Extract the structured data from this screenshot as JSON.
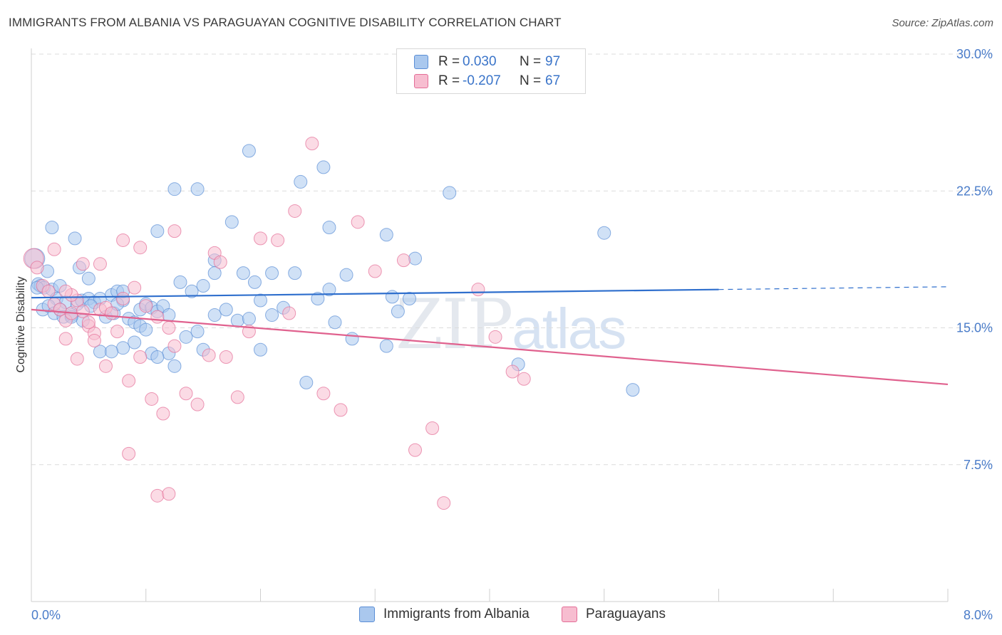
{
  "title": "IMMIGRANTS FROM ALBANIA VS PARAGUAYAN COGNITIVE DISABILITY CORRELATION CHART",
  "source": "Source: ZipAtlas.com",
  "watermark": {
    "zip": "ZIP",
    "atlas": "atlas"
  },
  "legend": {
    "r_label": "R =",
    "n_label": "N =",
    "rows": [
      {
        "r": "0.030",
        "n": "97",
        "color": "#aac8ee"
      },
      {
        "r": "-0.207",
        "n": "67",
        "color": "#f7bdd0"
      }
    ]
  },
  "bottom_legend": [
    {
      "label": "Immigrants from Albania",
      "color": "#aac8ee"
    },
    {
      "label": "Paraguayans",
      "color": "#f7bdd0"
    }
  ],
  "chart_data": {
    "type": "scatter",
    "title": "IMMIGRANTS FROM ALBANIA VS PARAGUAYAN COGNITIVE DISABILITY CORRELATION CHART",
    "xlabel": "",
    "ylabel": "Cognitive Disability",
    "xlim": [
      0,
      8
    ],
    "ylim": [
      0,
      30
    ],
    "x_tick_labels": [
      "0.0%",
      "8.0%"
    ],
    "y_ticks": [
      7.5,
      15.0,
      22.5,
      30.0
    ],
    "y_tick_labels": [
      "7.5%",
      "15.0%",
      "22.5%",
      "30.0%"
    ],
    "series": [
      {
        "name": "Immigrants from Albania",
        "color": "#5b8ed6",
        "fill": "#aac8ee",
        "trend": {
          "x0": 0.0,
          "y0": 16.65,
          "x1": 8.0,
          "y1": 17.25,
          "solid_until": 6.0
        },
        "points": [
          [
            0.03,
            18.8
          ],
          [
            0.06,
            17.4
          ],
          [
            0.14,
            18.1
          ],
          [
            0.08,
            17.3
          ],
          [
            0.11,
            17.2
          ],
          [
            0.18,
            17.1
          ],
          [
            0.22,
            16.6
          ],
          [
            0.3,
            16.4
          ],
          [
            0.4,
            16.3
          ],
          [
            0.44,
            16.5
          ],
          [
            0.5,
            16.6
          ],
          [
            0.55,
            16.4
          ],
          [
            0.6,
            16.6
          ],
          [
            0.7,
            16.8
          ],
          [
            0.75,
            17.0
          ],
          [
            0.8,
            16.5
          ],
          [
            0.1,
            16.0
          ],
          [
            0.15,
            16.2
          ],
          [
            0.2,
            15.8
          ],
          [
            0.25,
            16.0
          ],
          [
            0.28,
            15.6
          ],
          [
            0.35,
            15.7
          ],
          [
            0.45,
            15.4
          ],
          [
            0.52,
            16.2
          ],
          [
            0.65,
            15.6
          ],
          [
            0.72,
            15.8
          ],
          [
            0.85,
            15.5
          ],
          [
            0.9,
            15.3
          ],
          [
            0.95,
            16.0
          ],
          [
            1.0,
            16.3
          ],
          [
            1.05,
            16.1
          ],
          [
            1.1,
            15.9
          ],
          [
            1.15,
            16.2
          ],
          [
            1.2,
            15.7
          ],
          [
            1.3,
            17.5
          ],
          [
            1.4,
            17.0
          ],
          [
            1.5,
            17.3
          ],
          [
            1.6,
            15.7
          ],
          [
            1.7,
            16.0
          ],
          [
            1.8,
            15.4
          ],
          [
            1.9,
            15.5
          ],
          [
            2.0,
            16.5
          ],
          [
            2.1,
            15.7
          ],
          [
            2.2,
            16.1
          ],
          [
            2.3,
            18.0
          ],
          [
            2.5,
            16.6
          ],
          [
            0.18,
            20.5
          ],
          [
            0.38,
            19.9
          ],
          [
            0.42,
            18.3
          ],
          [
            0.5,
            17.7
          ],
          [
            0.8,
            17.0
          ],
          [
            0.95,
            15.1
          ],
          [
            1.0,
            14.9
          ],
          [
            0.9,
            14.2
          ],
          [
            1.2,
            13.6
          ],
          [
            0.6,
            13.7
          ],
          [
            0.8,
            13.9
          ],
          [
            1.05,
            13.6
          ],
          [
            1.1,
            13.4
          ],
          [
            1.35,
            14.5
          ],
          [
            1.45,
            14.8
          ],
          [
            0.7,
            13.7
          ],
          [
            1.1,
            20.3
          ],
          [
            1.25,
            22.6
          ],
          [
            1.45,
            22.6
          ],
          [
            1.6,
            18.7
          ],
          [
            1.75,
            20.8
          ],
          [
            1.6,
            18.0
          ],
          [
            1.85,
            18.0
          ],
          [
            2.1,
            18.0
          ],
          [
            1.9,
            24.7
          ],
          [
            2.35,
            23.0
          ],
          [
            2.55,
            23.8
          ],
          [
            2.6,
            20.5
          ],
          [
            2.75,
            17.9
          ],
          [
            2.6,
            17.1
          ],
          [
            2.65,
            15.3
          ],
          [
            2.8,
            14.4
          ],
          [
            3.1,
            20.1
          ],
          [
            3.15,
            16.7
          ],
          [
            3.3,
            16.6
          ],
          [
            3.2,
            15.9
          ],
          [
            3.1,
            14.0
          ],
          [
            3.35,
            18.8
          ],
          [
            3.65,
            22.4
          ],
          [
            4.25,
            13.0
          ],
          [
            5.0,
            20.2
          ],
          [
            5.25,
            11.6
          ],
          [
            2.4,
            12.0
          ],
          [
            1.25,
            12.9
          ],
          [
            1.5,
            13.8
          ],
          [
            2.0,
            13.8
          ],
          [
            0.05,
            17.2
          ],
          [
            0.25,
            17.3
          ],
          [
            0.35,
            15.6
          ],
          [
            1.95,
            17.5
          ],
          [
            0.75,
            16.3
          ]
        ]
      },
      {
        "name": "Paraguayans",
        "color": "#e46d97",
        "fill": "#f7bdd0",
        "trend": {
          "x0": 0.0,
          "y0": 16.0,
          "x1": 8.0,
          "y1": 11.9
        },
        "points": [
          [
            0.02,
            18.8
          ],
          [
            0.05,
            18.3
          ],
          [
            0.1,
            17.3
          ],
          [
            0.15,
            17.0
          ],
          [
            0.2,
            16.3
          ],
          [
            0.25,
            16.0
          ],
          [
            0.3,
            15.4
          ],
          [
            0.35,
            15.8
          ],
          [
            0.4,
            16.5
          ],
          [
            0.45,
            15.9
          ],
          [
            0.5,
            15.1
          ],
          [
            0.55,
            14.7
          ],
          [
            0.6,
            16.0
          ],
          [
            0.65,
            16.1
          ],
          [
            0.7,
            15.8
          ],
          [
            0.8,
            16.6
          ],
          [
            0.9,
            17.2
          ],
          [
            1.0,
            16.2
          ],
          [
            1.1,
            15.6
          ],
          [
            1.2,
            15.0
          ],
          [
            0.3,
            14.4
          ],
          [
            0.4,
            13.3
          ],
          [
            0.55,
            14.3
          ],
          [
            0.65,
            12.9
          ],
          [
            0.75,
            14.8
          ],
          [
            0.85,
            12.1
          ],
          [
            0.95,
            13.4
          ],
          [
            1.05,
            11.1
          ],
          [
            1.15,
            10.3
          ],
          [
            1.25,
            14.0
          ],
          [
            1.35,
            11.4
          ],
          [
            1.45,
            10.8
          ],
          [
            1.55,
            13.5
          ],
          [
            1.6,
            19.1
          ],
          [
            1.7,
            13.4
          ],
          [
            1.8,
            11.2
          ],
          [
            1.9,
            14.8
          ],
          [
            2.0,
            19.9
          ],
          [
            2.15,
            19.8
          ],
          [
            2.3,
            21.4
          ],
          [
            2.45,
            25.1
          ],
          [
            2.55,
            11.4
          ],
          [
            2.7,
            10.5
          ],
          [
            2.85,
            20.8
          ],
          [
            3.0,
            18.1
          ],
          [
            3.25,
            18.7
          ],
          [
            3.35,
            8.3
          ],
          [
            3.5,
            9.5
          ],
          [
            3.6,
            5.4
          ],
          [
            3.9,
            17.1
          ],
          [
            4.05,
            14.5
          ],
          [
            4.2,
            12.6
          ],
          [
            4.3,
            12.2
          ],
          [
            0.85,
            8.1
          ],
          [
            1.1,
            5.8
          ],
          [
            1.2,
            5.9
          ],
          [
            0.6,
            18.5
          ],
          [
            0.95,
            19.4
          ],
          [
            1.25,
            20.3
          ],
          [
            0.2,
            19.3
          ],
          [
            0.35,
            16.8
          ],
          [
            0.5,
            15.3
          ],
          [
            0.8,
            19.8
          ],
          [
            0.3,
            17.0
          ],
          [
            1.65,
            18.6
          ],
          [
            2.25,
            15.8
          ],
          [
            0.45,
            18.5
          ]
        ]
      }
    ]
  }
}
